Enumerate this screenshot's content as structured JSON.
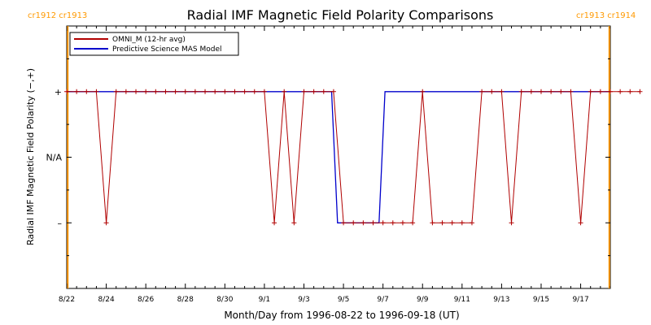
{
  "chart_data": {
    "type": "line",
    "title": "Radial IMF Magnetic Field Polarity Comparisons",
    "xlabel": "Month/Day from 1996-08-22 to 1996-09-18 (UT)",
    "ylabel": "Radial IMF Magnetic Field Polarity (−,+)",
    "x_ticks": [
      "8/22",
      "8/24",
      "8/26",
      "8/28",
      "8/30",
      "9/1",
      "9/3",
      "9/5",
      "9/7",
      "9/9",
      "9/11",
      "9/13",
      "9/15",
      "9/17"
    ],
    "x_range_days": [
      0,
      27.5
    ],
    "y_ticks": [
      {
        "value": 1,
        "label": "+"
      },
      {
        "value": 0,
        "label": "N/A"
      },
      {
        "value": -1,
        "label": "–"
      }
    ],
    "ylim": [
      -2,
      2
    ],
    "carrington_labels": {
      "left": "cr1912 cr1913",
      "right": "cr1913 cr1914",
      "left_boundary_day": 0.05,
      "right_boundary_day": 27.45
    },
    "colors": {
      "omni": "#b00000",
      "mas": "#0000cc",
      "carrington": "#ff9900"
    },
    "series": [
      {
        "name": "OMNI_M (12-hr avg)",
        "x_start_day": 0,
        "x_step_day": 0.5,
        "values": [
          1,
          1,
          1,
          1,
          -1,
          1,
          1,
          1,
          1,
          1,
          1,
          1,
          1,
          1,
          1,
          1,
          1,
          1,
          1,
          1,
          1,
          -1,
          1,
          -1,
          1,
          1,
          1,
          1,
          -1,
          -1,
          -1,
          -1,
          -1,
          -1,
          -1,
          -1,
          1,
          -1,
          -1,
          -1,
          -1,
          -1,
          1,
          1,
          1,
          -1,
          1,
          1,
          1,
          1,
          1,
          1,
          -1,
          1,
          1,
          1,
          1,
          1,
          1
        ]
      },
      {
        "name": "Predictive Science MAS Model",
        "points": [
          [
            0,
            1
          ],
          [
            13.4,
            1
          ],
          [
            13.7,
            -1
          ],
          [
            15.8,
            -1
          ],
          [
            16.1,
            1
          ],
          [
            27.45,
            1
          ]
        ]
      }
    ]
  }
}
